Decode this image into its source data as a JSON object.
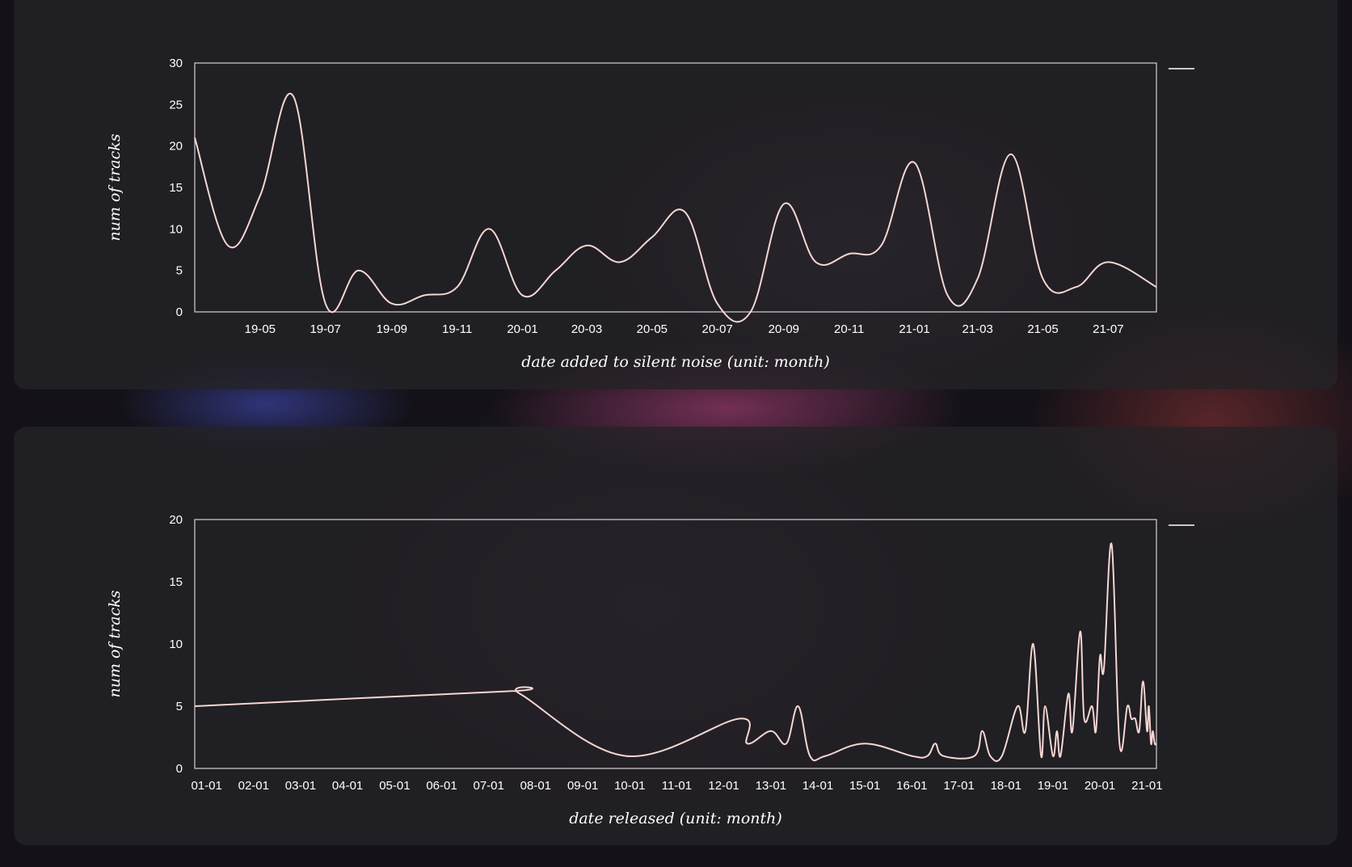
{
  "chart_data": [
    {
      "type": "line",
      "xlabel": "date added to silent noise (unit: month)",
      "ylabel": "num of tracks",
      "ylim": [
        0,
        30
      ],
      "y_ticks": [
        0,
        5,
        10,
        15,
        20,
        25,
        30
      ],
      "x_ticks": [
        "19-05",
        "19-07",
        "19-09",
        "19-11",
        "20-01",
        "20-03",
        "20-05",
        "20-07",
        "20-09",
        "20-11",
        "21-01",
        "21-03",
        "21-05",
        "21-07"
      ],
      "x_range": [
        "2019-03-01",
        "2021-08-15"
      ],
      "legend": "top-right",
      "series": [
        {
          "values": [
            [
              "2019-03-01",
              21
            ],
            [
              "2019-04-01",
              8
            ],
            [
              "2019-05-01",
              14
            ],
            [
              "2019-06-01",
              26
            ],
            [
              "2019-07-01",
              1
            ],
            [
              "2019-08-01",
              5
            ],
            [
              "2019-09-01",
              1
            ],
            [
              "2019-10-01",
              2
            ],
            [
              "2019-11-01",
              3
            ],
            [
              "2019-12-01",
              10
            ],
            [
              "2020-01-01",
              2
            ],
            [
              "2020-02-01",
              5
            ],
            [
              "2020-03-01",
              8
            ],
            [
              "2020-04-01",
              6
            ],
            [
              "2020-05-01",
              9
            ],
            [
              "2020-06-01",
              12
            ],
            [
              "2020-07-01",
              1
            ],
            [
              "2020-08-01",
              0
            ],
            [
              "2020-09-01",
              13
            ],
            [
              "2020-10-01",
              6
            ],
            [
              "2020-11-01",
              7
            ],
            [
              "2020-12-01",
              8
            ],
            [
              "2021-01-01",
              18
            ],
            [
              "2021-02-01",
              2
            ],
            [
              "2021-03-01",
              4
            ],
            [
              "2021-04-01",
              19
            ],
            [
              "2021-05-01",
              4
            ],
            [
              "2021-06-01",
              3
            ],
            [
              "2021-07-01",
              6
            ],
            [
              "2021-08-15",
              3
            ]
          ]
        }
      ]
    },
    {
      "type": "line",
      "xlabel": "date released (unit: month)",
      "ylabel": "num of tracks",
      "ylim": [
        0,
        20
      ],
      "y_ticks": [
        0,
        5,
        10,
        15,
        20
      ],
      "x_ticks": [
        "01-01",
        "02-01",
        "03-01",
        "04-01",
        "05-01",
        "06-01",
        "07-01",
        "08-01",
        "09-01",
        "10-01",
        "11-01",
        "12-01",
        "13-01",
        "14-01",
        "15-01",
        "16-01",
        "17-01",
        "18-01",
        "19-01",
        "20-01",
        "21-01"
      ],
      "x_range": [
        "2000-10-01",
        "2021-03-15"
      ],
      "legend": "top-right",
      "series": [
        {
          "values": [
            [
              "2000-10-01",
              5
            ],
            [
              "2007-06-01",
              6.2
            ],
            [
              "2007-09-01",
              6
            ],
            [
              "2009-12-01",
              1
            ],
            [
              "2012-05-01",
              4
            ],
            [
              "2012-07-01",
              2
            ],
            [
              "2013-01-01",
              3
            ],
            [
              "2013-05-01",
              2
            ],
            [
              "2013-08-01",
              5
            ],
            [
              "2013-11-01",
              1
            ],
            [
              "2014-03-01",
              1
            ],
            [
              "2015-01-01",
              2
            ],
            [
              "2016-01-01",
              1
            ],
            [
              "2016-05-01",
              1
            ],
            [
              "2016-07-01",
              2
            ],
            [
              "2016-09-01",
              1
            ],
            [
              "2017-05-01",
              1
            ],
            [
              "2017-07-01",
              3
            ],
            [
              "2017-09-01",
              1
            ],
            [
              "2017-12-01",
              1
            ],
            [
              "2018-04-01",
              5
            ],
            [
              "2018-06-01",
              3
            ],
            [
              "2018-08-01",
              10
            ],
            [
              "2018-10-01",
              1
            ],
            [
              "2018-11-01",
              5
            ],
            [
              "2019-01-01",
              1
            ],
            [
              "2019-02-01",
              3
            ],
            [
              "2019-03-01",
              1
            ],
            [
              "2019-05-01",
              6
            ],
            [
              "2019-06-01",
              3
            ],
            [
              "2019-08-01",
              11
            ],
            [
              "2019-09-01",
              4
            ],
            [
              "2019-11-01",
              5
            ],
            [
              "2019-12-01",
              3
            ],
            [
              "2020-01-01",
              9
            ],
            [
              "2020-02-01",
              8
            ],
            [
              "2020-04-01",
              18
            ],
            [
              "2020-06-01",
              2
            ],
            [
              "2020-08-01",
              5
            ],
            [
              "2020-09-01",
              4
            ],
            [
              "2020-10-01",
              4
            ],
            [
              "2020-11-01",
              3
            ],
            [
              "2020-12-01",
              7
            ],
            [
              "2021-01-01",
              3
            ],
            [
              "2021-01-15",
              5
            ],
            [
              "2021-02-01",
              2
            ],
            [
              "2021-02-15",
              3
            ],
            [
              "2021-03-01",
              2
            ],
            [
              "2021-03-15",
              2
            ]
          ]
        }
      ]
    }
  ]
}
